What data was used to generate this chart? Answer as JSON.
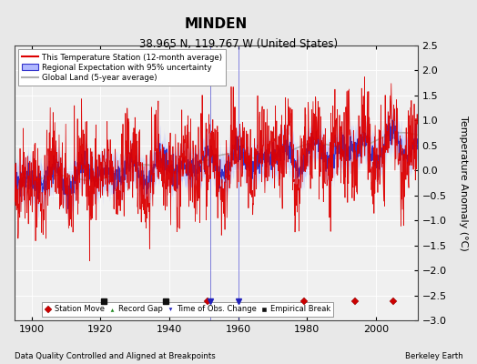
{
  "title": "MINDEN",
  "subtitle": "38.965 N, 119.767 W (United States)",
  "ylabel": "Temperature Anomaly (°C)",
  "xlabel_note": "Data Quality Controlled and Aligned at Breakpoints",
  "credit": "Berkeley Earth",
  "ylim": [
    -3.0,
    2.5
  ],
  "yticks": [
    -3,
    -2.5,
    -2,
    -1.5,
    -1,
    -0.5,
    0,
    0.5,
    1,
    1.5,
    2,
    2.5
  ],
  "xlim": [
    1895,
    2012
  ],
  "xticks": [
    1900,
    1920,
    1940,
    1960,
    1980,
    2000
  ],
  "year_start": 1895,
  "year_end": 2012,
  "bg_color": "#e8e8e8",
  "plot_bg_color": "#f0f0f0",
  "station_move_years": [
    1951,
    1979,
    1994,
    2005
  ],
  "time_obs_change_years": [
    1952,
    1960
  ],
  "empirical_break_years": [
    1921,
    1939
  ],
  "record_gap_years": [],
  "legend_labels": [
    "This Temperature Station (12-month average)",
    "Regional Expectation with 95% uncertainty",
    "Global Land (5-year average)"
  ],
  "title_fontsize": 11,
  "subtitle_fontsize": 8.5,
  "tick_fontsize": 8,
  "label_fontsize": 8
}
